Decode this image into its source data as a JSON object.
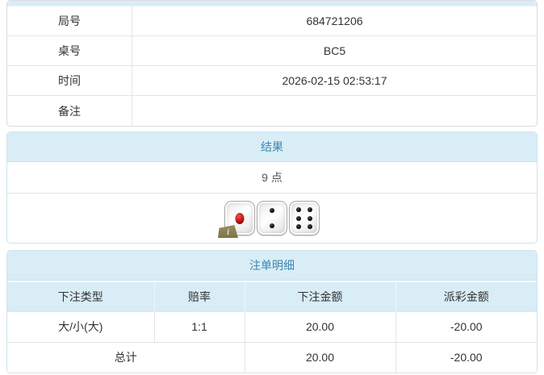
{
  "colors": {
    "header_bg": "#d9edf7",
    "header_text": "#3a87ad",
    "body_text": "#333333",
    "negative_red": "#e23838",
    "row_border": "#e4e4e4"
  },
  "info_table": {
    "rows": [
      {
        "label": "局号",
        "value": "684721206"
      },
      {
        "label": "桌号",
        "value": "BC5"
      },
      {
        "label": "时间",
        "value": "2026-02-15 02:53:17"
      },
      {
        "label": "备注",
        "value": ""
      }
    ]
  },
  "result_section": {
    "title": "结果",
    "points": "9 点",
    "dice": [
      1,
      2,
      6
    ],
    "info_badge": "i"
  },
  "bets_section": {
    "title": "注单明细",
    "columns": [
      "下注类型",
      "赔率",
      "下注金额",
      "派彩金额"
    ],
    "rows": [
      {
        "bet_type": "大/小(大)",
        "odds": "1:1",
        "bet_amount": "20.00",
        "payout": "-20.00"
      }
    ],
    "total": {
      "label": "总计",
      "bet_amount": "20.00",
      "payout": "-20.00"
    }
  }
}
